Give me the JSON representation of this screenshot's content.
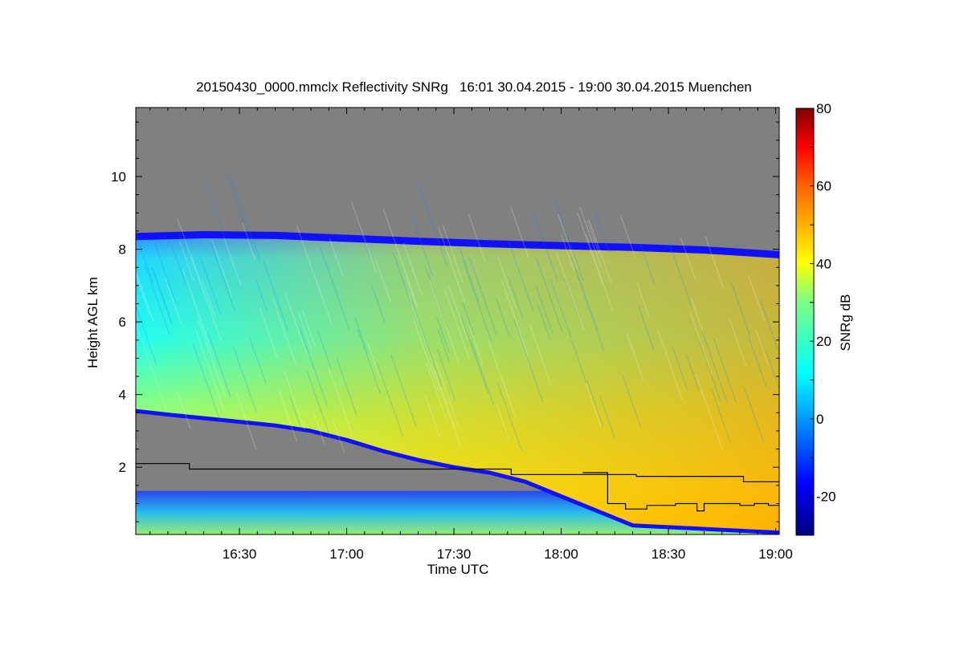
{
  "chart_data": {
    "type": "heatmap",
    "title": "20150430_0000.mmclx Reflectivity SNRg   16:01 30.04.2015 - 19:00 30.04.2015 Muenchen",
    "xlabel": "Time UTC",
    "ylabel": "Height AGL km",
    "x_ticks": [
      "16:30",
      "17:00",
      "17:30",
      "18:00",
      "18:30",
      "19:00"
    ],
    "x_tick_values_min": [
      990,
      1020,
      1050,
      1080,
      1110,
      1140
    ],
    "xlim_min": [
      961,
      1141
    ],
    "y_ticks": [
      "2",
      "4",
      "6",
      "8",
      "10"
    ],
    "y_tick_values": [
      2,
      4,
      6,
      8,
      10
    ],
    "ylim": [
      0.15,
      11.9
    ],
    "colorbar": {
      "label": "SNRg dB",
      "range": [
        -30,
        80
      ],
      "ticks": [
        "-20",
        "0",
        "20",
        "40",
        "60",
        "80"
      ],
      "tick_values": [
        -20,
        0,
        20,
        40,
        60,
        80
      ]
    },
    "background_color": "#808080",
    "cloud_top_km": [
      [
        961,
        8.35
      ],
      [
        980,
        8.4
      ],
      [
        1000,
        8.38
      ],
      [
        1020,
        8.3
      ],
      [
        1040,
        8.22
      ],
      [
        1060,
        8.15
      ],
      [
        1080,
        8.1
      ],
      [
        1100,
        8.05
      ],
      [
        1120,
        7.98
      ],
      [
        1141,
        7.85
      ]
    ],
    "cloud_base_km": [
      [
        961,
        3.55
      ],
      [
        970,
        3.45
      ],
      [
        980,
        3.35
      ],
      [
        990,
        3.25
      ],
      [
        1000,
        3.15
      ],
      [
        1010,
        3.0
      ],
      [
        1020,
        2.75
      ],
      [
        1030,
        2.45
      ],
      [
        1040,
        2.2
      ],
      [
        1050,
        2.0
      ],
      [
        1060,
        1.85
      ],
      [
        1070,
        1.6
      ],
      [
        1080,
        1.2
      ],
      [
        1090,
        0.8
      ],
      [
        1100,
        0.4
      ],
      [
        1141,
        0.2
      ]
    ],
    "boundary_line_1_km": [
      [
        961,
        2.1
      ],
      [
        976,
        2.1
      ],
      [
        976,
        1.95
      ],
      [
        1066,
        1.95
      ],
      [
        1066,
        1.8
      ],
      [
        1101,
        1.8
      ],
      [
        1101,
        1.75
      ],
      [
        1131,
        1.75
      ],
      [
        1131,
        1.6
      ],
      [
        1141,
        1.6
      ]
    ],
    "boundary_line_2_km": [
      [
        1086,
        1.85
      ],
      [
        1093,
        1.85
      ],
      [
        1093,
        1.0
      ],
      [
        1098,
        1.0
      ],
      [
        1098,
        0.85
      ],
      [
        1104,
        0.85
      ],
      [
        1104,
        0.95
      ],
      [
        1112,
        0.95
      ],
      [
        1112,
        1.0
      ],
      [
        1118,
        1.0
      ],
      [
        1118,
        0.8
      ],
      [
        1120,
        0.8
      ],
      [
        1120,
        1.0
      ],
      [
        1130,
        1.0
      ],
      [
        1130,
        0.95
      ],
      [
        1134,
        0.95
      ],
      [
        1134,
        1.0
      ],
      [
        1138,
        1.0
      ],
      [
        1138,
        0.95
      ],
      [
        1141,
        0.95
      ]
    ]
  }
}
